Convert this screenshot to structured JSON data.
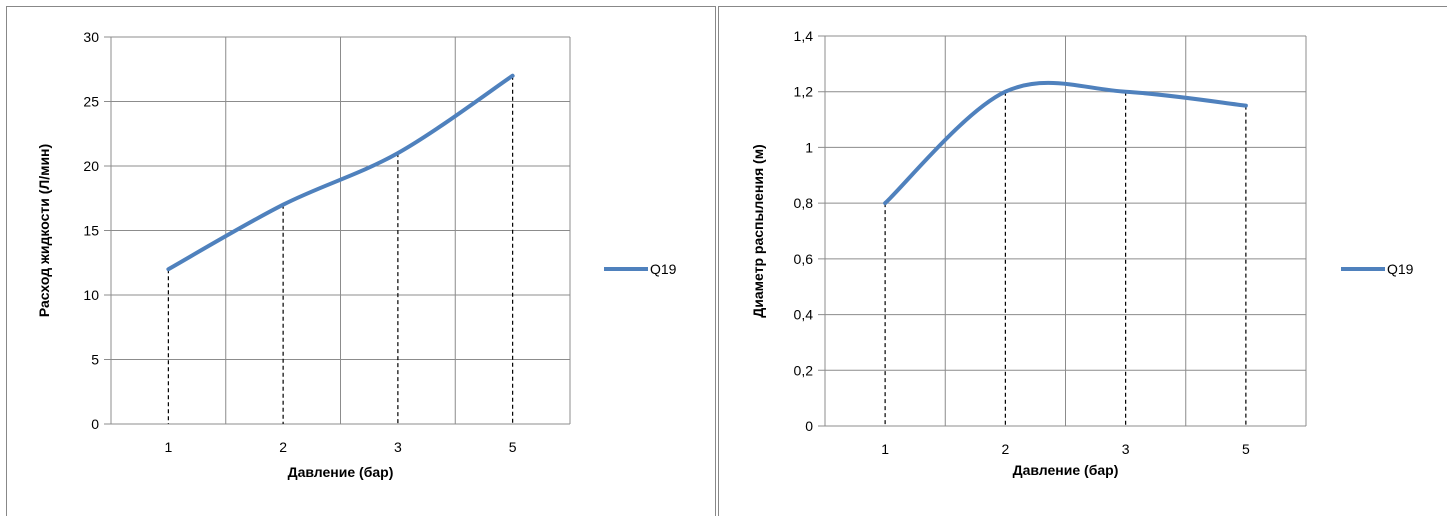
{
  "chart_data": [
    {
      "type": "line",
      "categories": [
        "1",
        "2",
        "3",
        "5"
      ],
      "series": [
        {
          "name": "Q19",
          "values": [
            12,
            17,
            21,
            27
          ]
        }
      ],
      "xlabel": "Давление (бар)",
      "ylabel": "Расход жидкости (Л/мин)",
      "ylim": [
        0,
        30
      ],
      "yticks": [
        "0",
        "5",
        "10",
        "15",
        "20",
        "25",
        "30"
      ],
      "grid": true,
      "drop_lines": true,
      "legend": "right",
      "color": "#4F81BD"
    },
    {
      "type": "line",
      "categories": [
        "1",
        "2",
        "3",
        "5"
      ],
      "series": [
        {
          "name": "Q19",
          "values": [
            0.8,
            1.2,
            1.2,
            1.15
          ]
        }
      ],
      "xlabel": "Давление (бар)",
      "ylabel": "Диаметр распыления (м)",
      "ylim": [
        0,
        1.4
      ],
      "yticks": [
        "0",
        "0,2",
        "0,4",
        "0,6",
        "0,8",
        "1",
        "1,2",
        "1,4"
      ],
      "grid": true,
      "drop_lines": true,
      "legend": "right",
      "color": "#4F81BD"
    }
  ]
}
